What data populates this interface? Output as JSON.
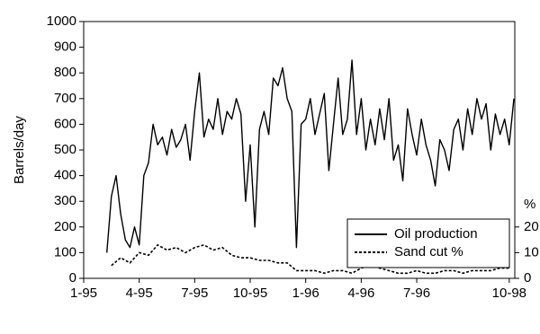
{
  "chart_data": {
    "type": "line",
    "y_label": "Barrels/day",
    "y2_label": "%",
    "xlim": [
      0,
      23.3
    ],
    "xticks": [
      {
        "value": 0,
        "label": "1-95"
      },
      {
        "value": 3,
        "label": "4-95"
      },
      {
        "value": 6,
        "label": "7-95"
      },
      {
        "value": 9,
        "label": "10-95"
      },
      {
        "value": 12,
        "label": "1-96"
      },
      {
        "value": 15,
        "label": "4-96"
      },
      {
        "value": 18,
        "label": "7-96"
      },
      {
        "value": 23,
        "label": "10-98"
      }
    ],
    "ylim": [
      0,
      1000
    ],
    "yticks": [
      0,
      100,
      200,
      300,
      400,
      500,
      600,
      700,
      800,
      900,
      1000
    ],
    "y2lim": [
      0,
      100
    ],
    "y2ticks": [
      0,
      10,
      20
    ],
    "legend": "lower right",
    "series": [
      {
        "name": "Oil production",
        "color": "#000000",
        "dash": "solid",
        "x": [
          1.25,
          1.5,
          1.75,
          2.0,
          2.25,
          2.5,
          2.75,
          3.0,
          3.25,
          3.5,
          3.75,
          4.0,
          4.25,
          4.5,
          4.75,
          5.0,
          5.25,
          5.5,
          5.75,
          6.0,
          6.25,
          6.5,
          6.75,
          7.0,
          7.25,
          7.5,
          7.75,
          8.0,
          8.25,
          8.5,
          8.75,
          9.0,
          9.25,
          9.5,
          9.75,
          10.0,
          10.25,
          10.5,
          10.75,
          11.0,
          11.25,
          11.5,
          11.75,
          12.0,
          12.25,
          12.5,
          12.75,
          13.0,
          13.25,
          13.5,
          13.75,
          14.0,
          14.25,
          14.5,
          14.75,
          15.0,
          15.25,
          15.5,
          15.75,
          16.0,
          16.25,
          16.5,
          16.75,
          17.0,
          17.25,
          17.5,
          17.75,
          18.0,
          18.25,
          18.5,
          18.75,
          19.0,
          19.25,
          19.5,
          19.75,
          20.0,
          20.25,
          20.5,
          20.75,
          21.0,
          21.25,
          21.5,
          21.75,
          22.0,
          22.25,
          22.5,
          22.75,
          23.0,
          23.25
        ],
        "values": [
          100,
          320,
          400,
          250,
          150,
          120,
          200,
          130,
          400,
          450,
          600,
          520,
          550,
          480,
          580,
          510,
          540,
          600,
          460,
          650,
          800,
          550,
          620,
          580,
          700,
          560,
          650,
          620,
          700,
          640,
          300,
          520,
          200,
          580,
          650,
          560,
          780,
          750,
          820,
          700,
          650,
          120,
          600,
          620,
          700,
          560,
          640,
          720,
          420,
          600,
          780,
          560,
          620,
          850,
          560,
          700,
          500,
          620,
          520,
          660,
          540,
          700,
          460,
          520,
          380,
          660,
          560,
          480,
          620,
          520,
          460,
          360,
          540,
          500,
          420,
          580,
          620,
          500,
          660,
          560,
          700,
          620,
          680,
          500,
          640,
          560,
          620,
          520,
          700
        ]
      },
      {
        "name": "Sand cut %",
        "color": "#000000",
        "dash": "dashed",
        "axis": "y2",
        "x": [
          1.5,
          2.0,
          2.5,
          3.0,
          3.5,
          4.0,
          4.5,
          5.0,
          5.5,
          6.0,
          6.5,
          7.0,
          7.5,
          8.0,
          8.5,
          9.0,
          9.5,
          10.0,
          10.5,
          11.0,
          11.5,
          12.0,
          12.5,
          13.0,
          13.5,
          14.0,
          14.5,
          15.0,
          15.5,
          16.0,
          16.5,
          17.0,
          17.5,
          18.0,
          18.5,
          19.0,
          19.5,
          20.0,
          20.5,
          21.0,
          21.5,
          22.0,
          22.5,
          23.0
        ],
        "values": [
          5,
          8,
          6,
          10,
          9,
          13,
          11,
          12,
          10,
          12,
          13,
          11,
          12,
          9,
          8,
          8,
          7,
          7,
          6,
          6,
          3,
          3,
          3,
          2,
          3,
          3,
          2,
          4,
          5,
          4,
          3,
          2,
          2,
          3,
          2,
          2,
          3,
          3,
          2,
          3,
          3,
          3,
          4,
          4
        ]
      }
    ]
  }
}
